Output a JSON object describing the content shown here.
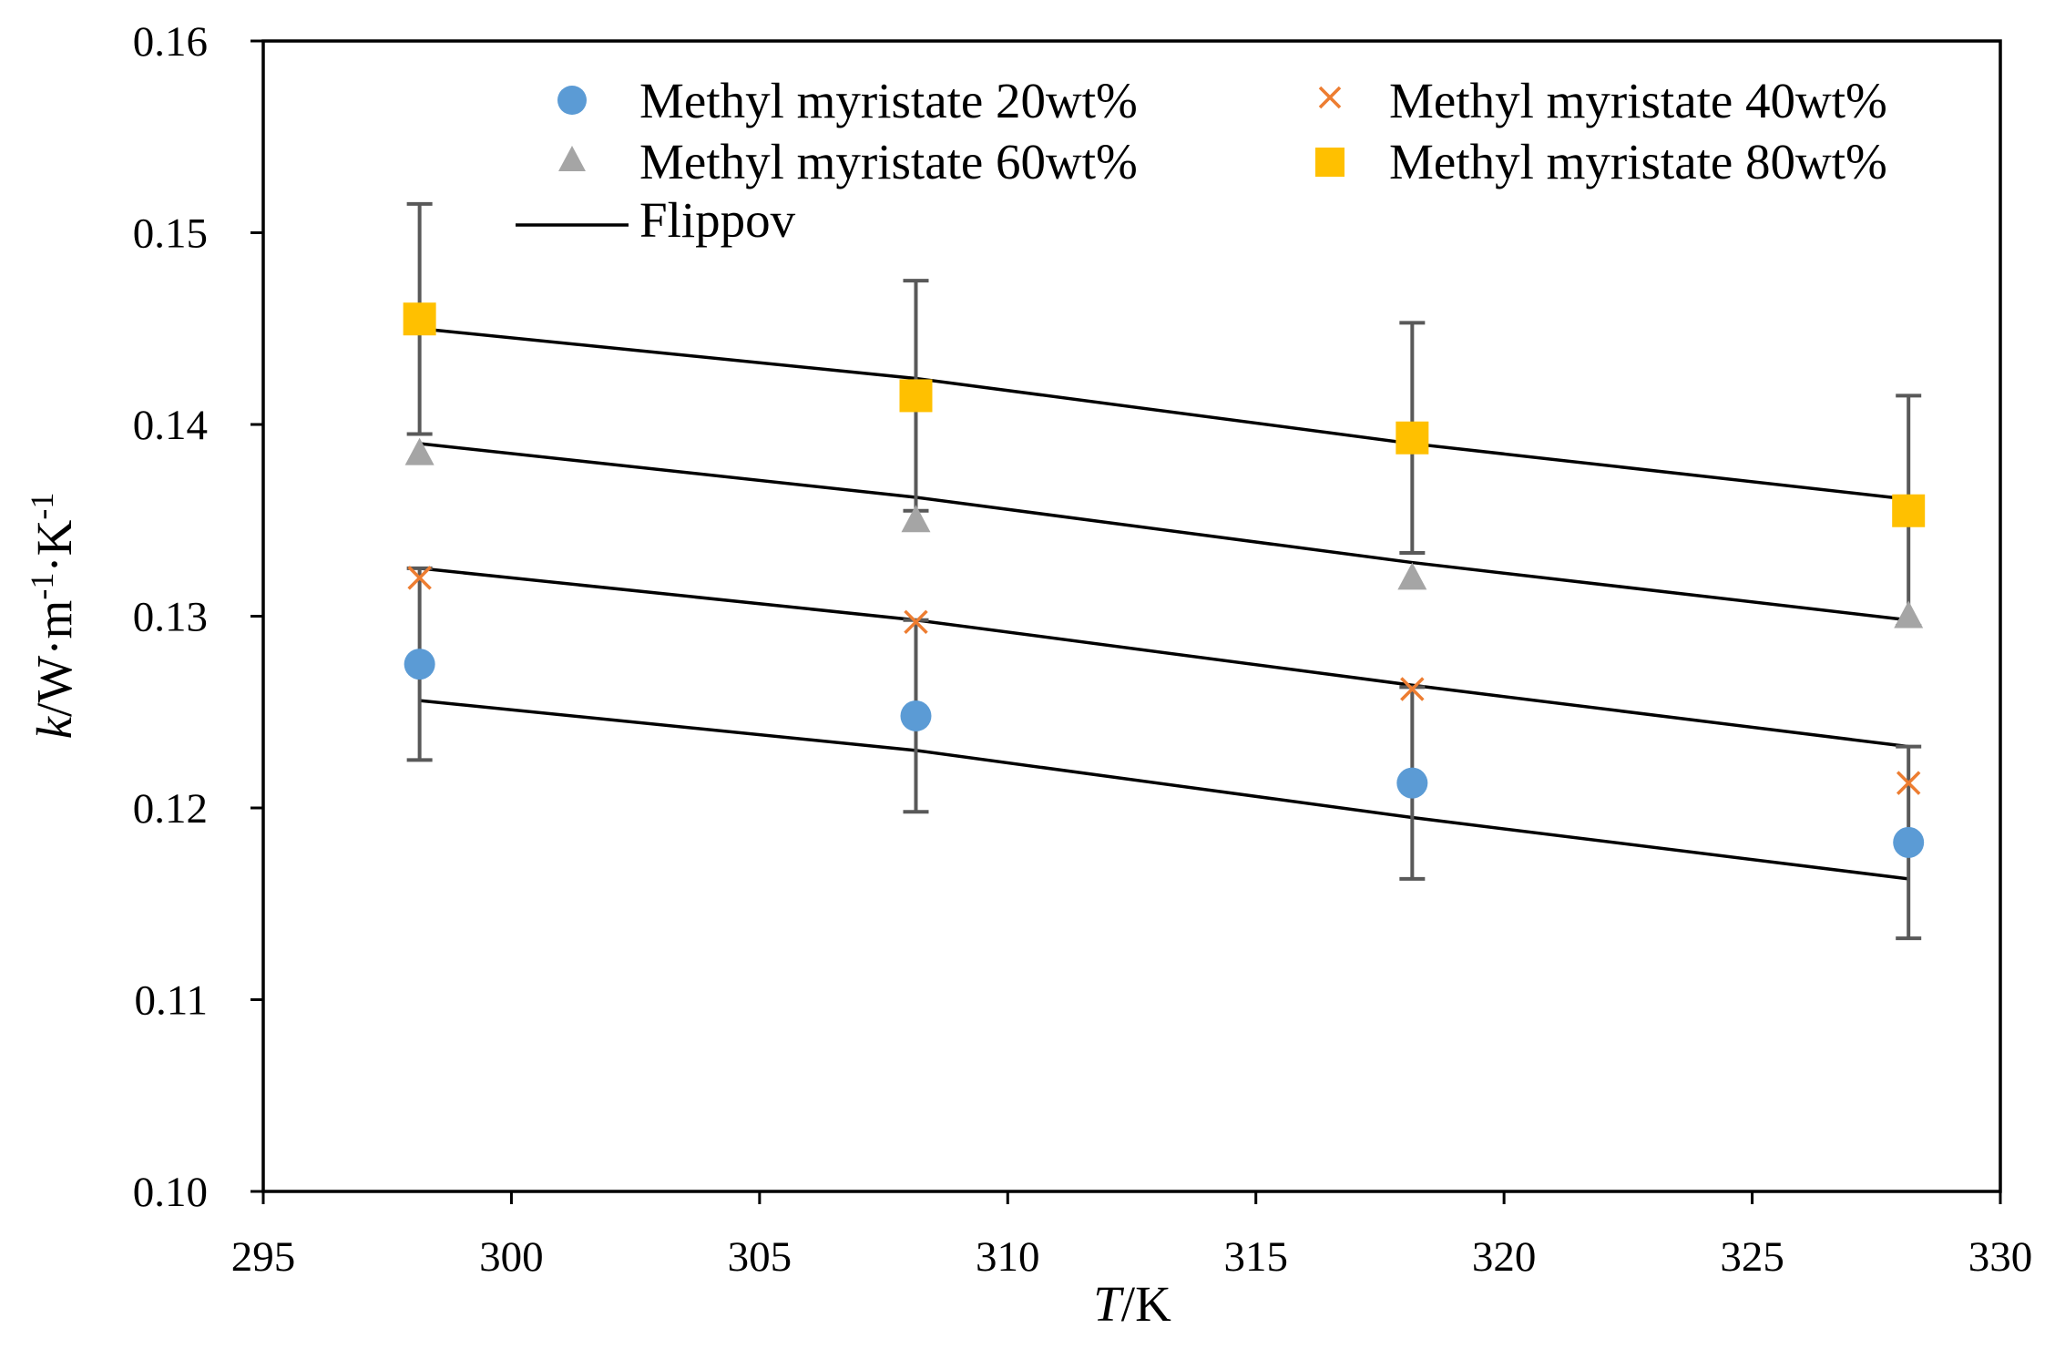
{
  "chart_data": {
    "type": "scatter",
    "xlabel_italic": "T",
    "xlabel_rest": "/K",
    "ylabel_italic": "k",
    "ylabel_rest": "/W·m",
    "ylabel_sup1": "-1",
    "ylabel_mid": "·K",
    "ylabel_sup2": "-1",
    "xlim": [
      295,
      330
    ],
    "ylim": [
      0.1,
      0.16
    ],
    "xticks": [
      295,
      300,
      305,
      310,
      315,
      320,
      325,
      330
    ],
    "xtick_labels": [
      "295",
      "300",
      "305",
      "310",
      "315",
      "320",
      "325",
      "330"
    ],
    "yticks": [
      0.1,
      0.11,
      0.12,
      0.13,
      0.14,
      0.15,
      0.16
    ],
    "ytick_labels": [
      "0.10",
      "0.11",
      "0.12",
      "0.13",
      "0.14",
      "0.15",
      "0.16"
    ],
    "grid": false,
    "legend_position": "top",
    "legend": {
      "s20": "Methyl myristate 20wt%",
      "s40": "Methyl myristate 40wt%",
      "s60": "Methyl myristate 60wt%",
      "s80": "Methyl myristate 80wt%",
      "model": "Flippov"
    },
    "series": [
      {
        "key": "s20",
        "name": "Methyl myristate 20wt%",
        "marker": "circle",
        "color": "#5B9BD5",
        "x": [
          298.15,
          308.15,
          318.15,
          328.15
        ],
        "y": [
          0.1275,
          0.1248,
          0.1213,
          0.1182
        ],
        "error": 0.005
      },
      {
        "key": "s40",
        "name": "Methyl myristate 40wt%",
        "marker": "x",
        "color": "#ED7D31",
        "x": [
          298.15,
          308.15,
          318.15,
          328.15
        ],
        "y": [
          0.132,
          0.1297,
          0.1262,
          0.1213
        ],
        "error": 0.0
      },
      {
        "key": "s60",
        "name": "Methyl myristate 60wt%",
        "marker": "triangle",
        "color": "#A5A5A5",
        "x": [
          298.15,
          308.15,
          318.15,
          328.15
        ],
        "y": [
          0.1385,
          0.135,
          0.132,
          0.13
        ],
        "error": 0.0
      },
      {
        "key": "s80",
        "name": "Methyl myristate 80wt%",
        "marker": "square",
        "color": "#FFC000",
        "x": [
          298.15,
          308.15,
          318.15,
          328.15
        ],
        "y": [
          0.1455,
          0.1415,
          0.1393,
          0.1355
        ],
        "error": 0.006
      }
    ],
    "error_bar_color": "#595959",
    "model_lines": {
      "name": "Flippov",
      "color": "#000000",
      "lines": [
        {
          "x": [
            298.15,
            308.15,
            318.15,
            328.15
          ],
          "y": [
            0.1256,
            0.123,
            0.1195,
            0.1163
          ]
        },
        {
          "x": [
            298.15,
            308.15,
            318.15,
            328.15
          ],
          "y": [
            0.1325,
            0.1298,
            0.1264,
            0.1232
          ]
        },
        {
          "x": [
            298.15,
            308.15,
            318.15,
            328.15
          ],
          "y": [
            0.139,
            0.1362,
            0.1328,
            0.1298
          ]
        },
        {
          "x": [
            298.15,
            308.15,
            318.15,
            328.15
          ],
          "y": [
            0.145,
            0.1424,
            0.139,
            0.1361
          ]
        }
      ]
    }
  }
}
